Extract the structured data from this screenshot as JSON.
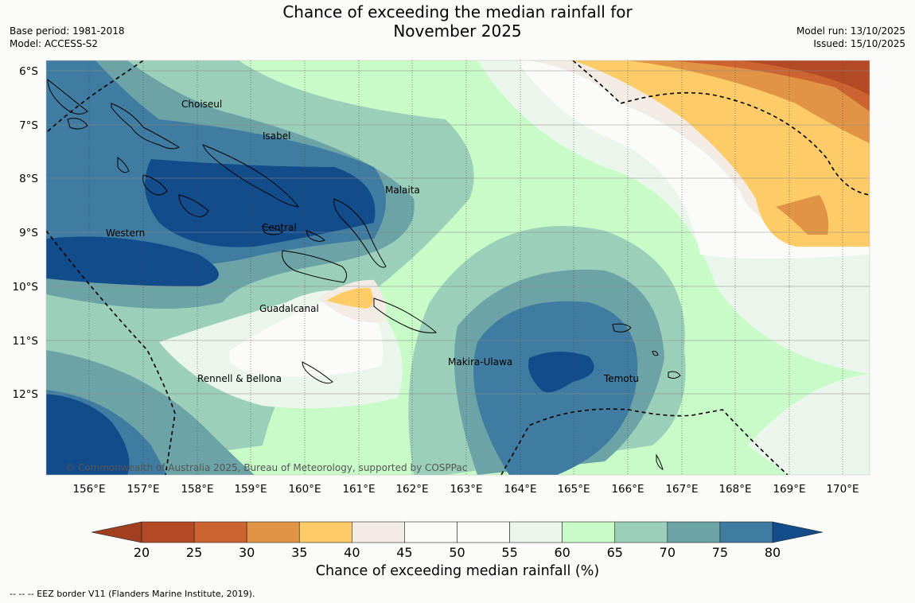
{
  "title": {
    "line1": "Chance of exceeding the median rainfall for",
    "line2": "November 2025"
  },
  "meta": {
    "base_period": "Base period: 1981-2018",
    "model": "Model: ACCESS-S2",
    "model_run": "Model run: 13/10/2025",
    "issued": "Issued: 15/10/2025"
  },
  "copyright": "© Commonwealth of Australia 2025, Bureau of Meteorology, supported by COSPPac",
  "chart_data": {
    "type": "heatmap",
    "title": "Chance of exceeding the median rainfall for November 2025",
    "xlabel": "",
    "ylabel": "",
    "lon_ticks": [
      "156°E",
      "157°E",
      "158°E",
      "159°E",
      "160°E",
      "161°E",
      "162°E",
      "163°E",
      "164°E",
      "165°E",
      "166°E",
      "167°E",
      "168°E",
      "169°E",
      "170°E"
    ],
    "lat_ticks": [
      "6°S",
      "7°S",
      "8°S",
      "9°S",
      "10°S",
      "11°S",
      "12°S"
    ],
    "region_labels": [
      "Choiseul",
      "Isabel",
      "Malaita",
      "Western",
      "Central",
      "Guadalcanal",
      "Makira-Ulawa",
      "Rennell & Bellona",
      "Temotu"
    ],
    "colorbar": {
      "label": "Chance of exceeding median rainfall (%)",
      "levels": [
        20,
        25,
        30,
        35,
        40,
        45,
        50,
        55,
        60,
        65,
        70,
        75,
        80
      ],
      "tick_labels": [
        "20",
        "25",
        "30",
        "35",
        "40",
        "45",
        "50",
        "55",
        "60",
        "65",
        "70",
        "75",
        "80"
      ],
      "colors": [
        "#b34a25",
        "#cd6331",
        "#e29446",
        "#fdcb68",
        "#f2ece5",
        "#fbfcfa",
        "#fbfcfa",
        "#eaf5eb",
        "#c9fbc8",
        "#9ccfb9",
        "#6ba3a6",
        "#407ca1",
        "#134c8b"
      ],
      "under_color": "#a13f20",
      "over_color": "#134c8b"
    }
  },
  "footnote": "--  --  -- EEZ border V11 (Flanders Marine Institute, 2019)."
}
